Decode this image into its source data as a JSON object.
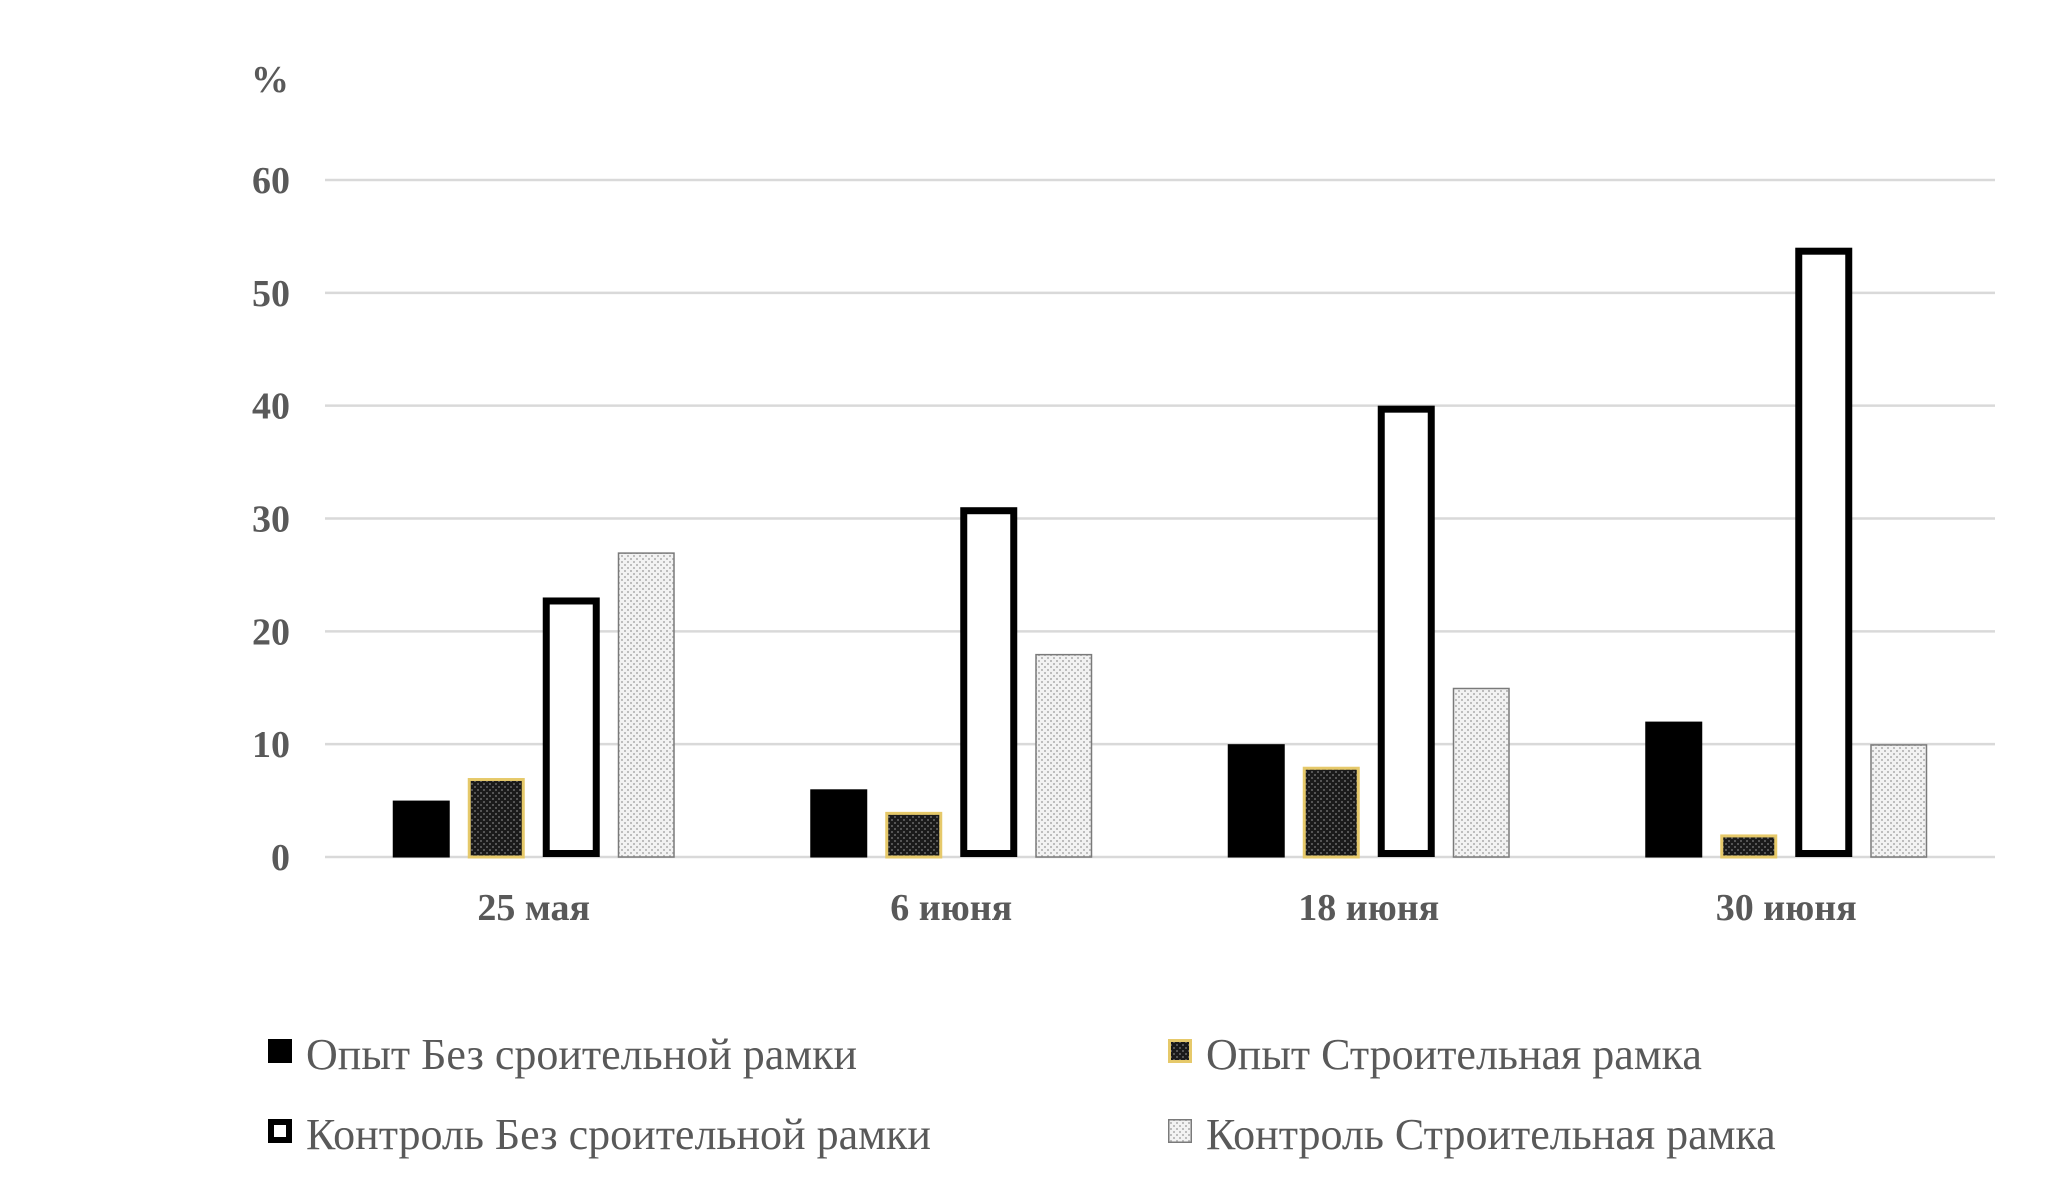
{
  "chart_data": {
    "type": "bar",
    "ylabel": "%",
    "ylim": [
      0,
      60
    ],
    "yticks": [
      0,
      10,
      20,
      30,
      40,
      50,
      60
    ],
    "grid": true,
    "legend_position": "bottom",
    "categories": [
      "25 мая",
      "6 июня",
      "18 июня",
      "30 июня"
    ],
    "series": [
      {
        "name": "Опыт Без сроительной рамки",
        "values": [
          5,
          6,
          10,
          12
        ],
        "fill": "#000000",
        "stroke": "#000000",
        "style": "solid"
      },
      {
        "name": "Опыт Строительная рамка",
        "values": [
          7,
          4,
          8,
          2
        ],
        "fill": "#2b2b2b",
        "stroke": "#e6c96a",
        "style": "dark-dotted"
      },
      {
        "name": "Контроль Без сроительной рамки",
        "values": [
          23,
          31,
          40,
          54
        ],
        "fill": "#ffffff",
        "stroke": "#000000",
        "style": "outline"
      },
      {
        "name": "Контроль Строительная рамка",
        "values": [
          27,
          18,
          15,
          10
        ],
        "fill": "#e4e4e4",
        "stroke": "#7a7a7a",
        "style": "light-dotted"
      }
    ],
    "colors": {
      "grid": "#d9d9d9",
      "axis_text": "#595959"
    }
  }
}
